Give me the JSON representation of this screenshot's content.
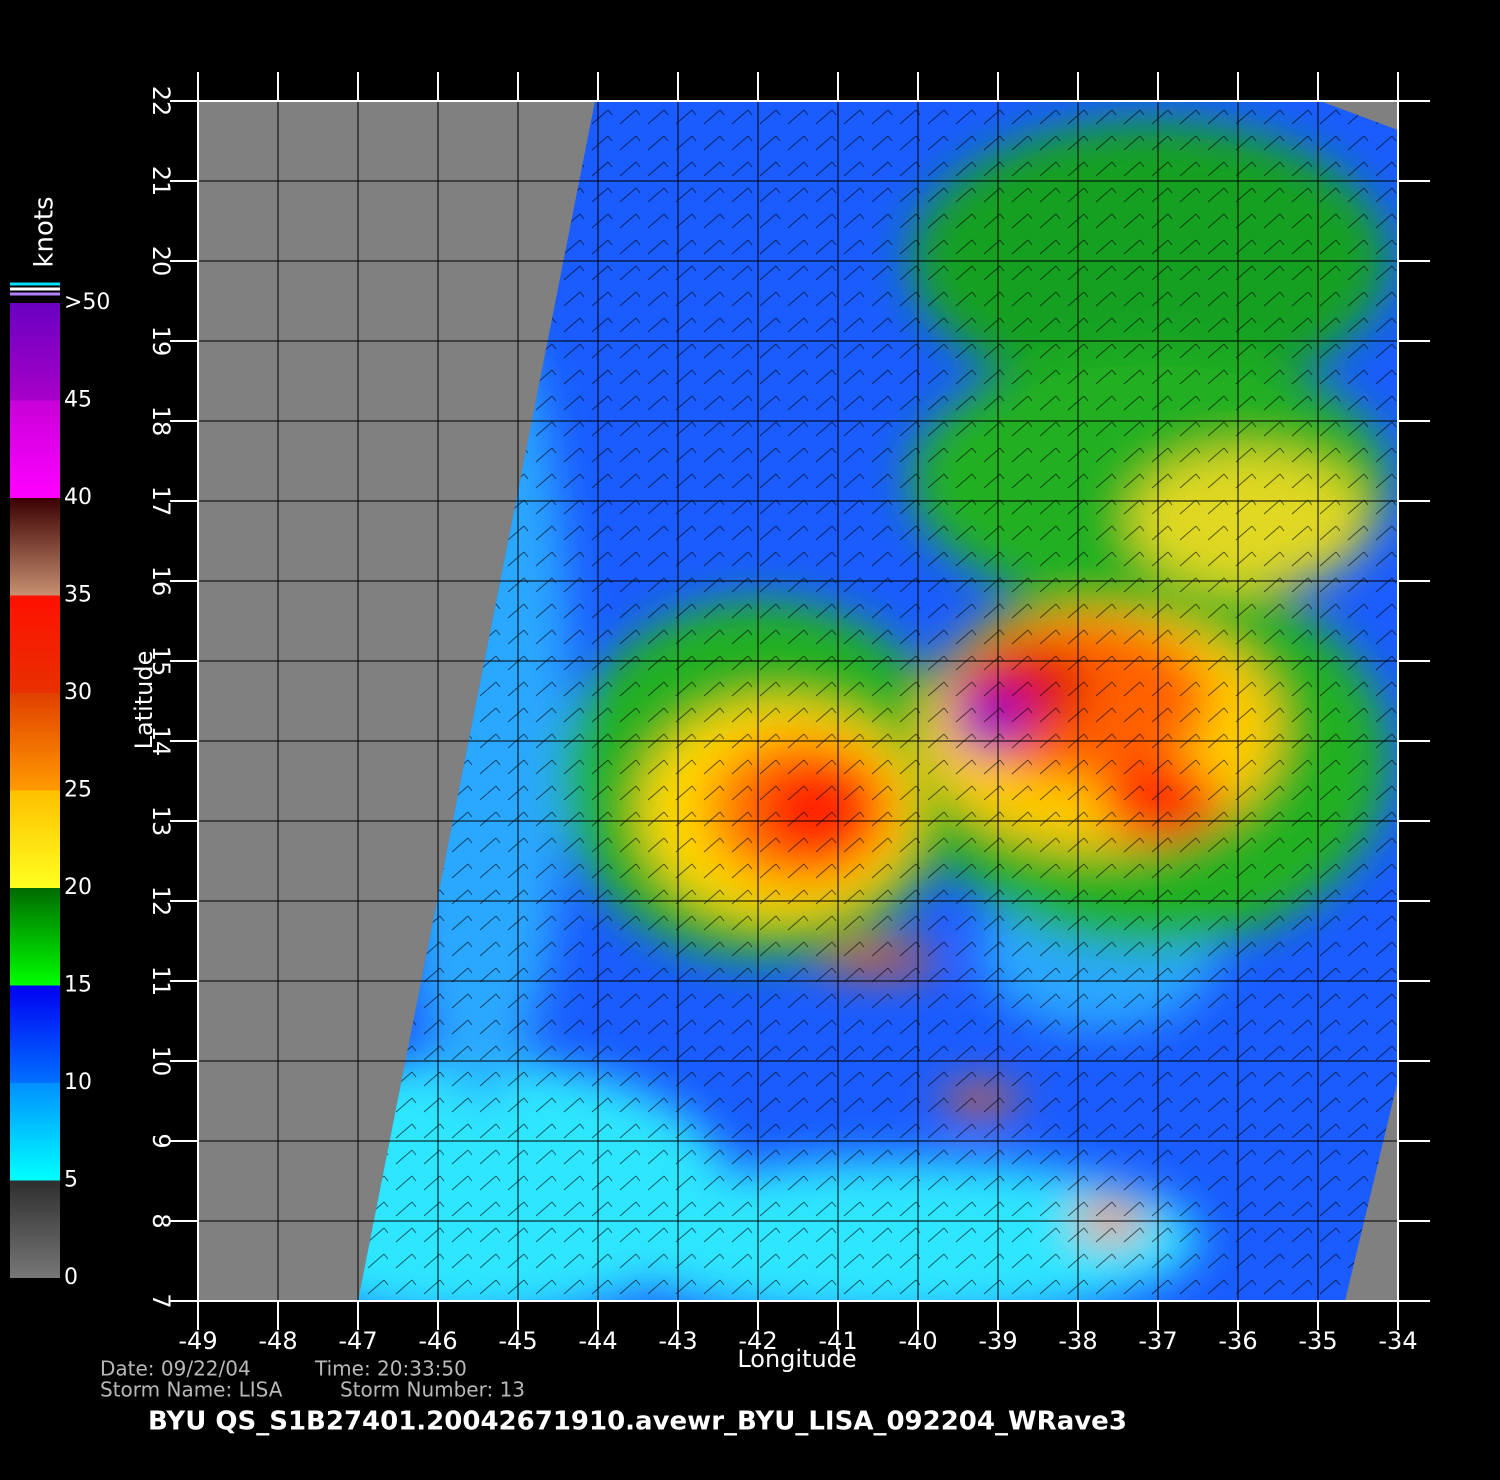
{
  "map": {
    "title": "BYU  QS_S1B27401.20042671910.avewr_BYU_LISA_092204_WRave3",
    "info": {
      "date": "Date: 09/22/04",
      "time": "Time: 20:33:50",
      "storm_name": "Storm  Name: LISA",
      "storm_number": "Storm  Number: 13"
    },
    "x_axis": {
      "label": "Longitude",
      "lim": [
        -49,
        -34
      ],
      "ticks": [
        -49,
        -48,
        -47,
        -46,
        -45,
        -44,
        -43,
        -42,
        -41,
        -40,
        -39,
        -38,
        -37,
        -36,
        -35,
        -34
      ]
    },
    "y_axis": {
      "label": "Latitude",
      "lim": [
        7,
        22
      ],
      "ticks": [
        7,
        8,
        9,
        10,
        11,
        12,
        13,
        14,
        15,
        16,
        17,
        18,
        19,
        20,
        21,
        22
      ]
    },
    "colorbar": {
      "label": "knots",
      "lim": [
        0,
        50
      ],
      "ticks": [
        0,
        5,
        10,
        15,
        20,
        25,
        30,
        35,
        40,
        45,
        {
          "value": 50,
          "label": ">50"
        }
      ],
      "colors": [
        [
          "#777777",
          "#2e2e2e"
        ],
        [
          "#00ffff",
          "#0090ff"
        ],
        [
          "#0070ff",
          "#0000f0"
        ],
        [
          "#00ff00",
          "#006a00"
        ],
        [
          "#ffff20",
          "#ffc000"
        ],
        [
          "#ff9a00",
          "#e04000"
        ],
        [
          "#e83000",
          "#ff1000"
        ],
        [
          "#c89070",
          "#3a0000"
        ],
        [
          "#ff00ff",
          "#c800d8"
        ],
        [
          "#a800c8",
          "#6a00c0"
        ]
      ]
    }
  }
}
